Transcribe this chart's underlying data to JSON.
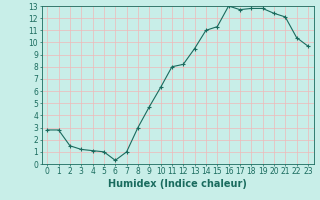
{
  "x": [
    0,
    1,
    2,
    3,
    4,
    5,
    6,
    7,
    8,
    9,
    10,
    11,
    12,
    13,
    14,
    15,
    16,
    17,
    18,
    19,
    20,
    21,
    22,
    23
  ],
  "y": [
    2.8,
    2.8,
    1.5,
    1.2,
    1.1,
    1.0,
    0.3,
    1.0,
    3.0,
    4.7,
    6.3,
    8.0,
    8.2,
    9.5,
    11.0,
    11.3,
    13.0,
    12.7,
    12.8,
    12.8,
    12.4,
    12.1,
    10.4,
    9.7
  ],
  "line_color": "#1a6b5e",
  "marker": "+",
  "bg_color": "#c8eee8",
  "grid_color": "#f0b8b8",
  "xlabel": "Humidex (Indice chaleur)",
  "ylim": [
    0,
    13
  ],
  "xlim": [
    -0.5,
    23.5
  ],
  "yticks": [
    0,
    1,
    2,
    3,
    4,
    5,
    6,
    7,
    8,
    9,
    10,
    11,
    12,
    13
  ],
  "xticks": [
    0,
    1,
    2,
    3,
    4,
    5,
    6,
    7,
    8,
    9,
    10,
    11,
    12,
    13,
    14,
    15,
    16,
    17,
    18,
    19,
    20,
    21,
    22,
    23
  ],
  "xlabel_fontsize": 7,
  "tick_fontsize": 5.5
}
